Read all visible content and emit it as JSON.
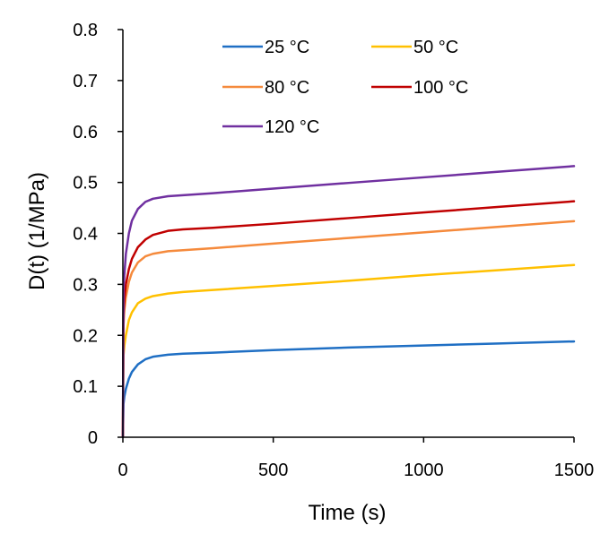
{
  "chart_data": {
    "type": "line",
    "title": "",
    "xlabel": "Time (s)",
    "ylabel": "D(t) (1/MPa)",
    "xlim": [
      0,
      1500
    ],
    "ylim": [
      0,
      0.8
    ],
    "xticks": [
      0,
      500,
      1000,
      1500
    ],
    "xtick_labels": [
      "0",
      "500",
      "1000",
      "1500"
    ],
    "yticks": [
      0,
      0.1,
      0.2,
      0.3,
      0.4,
      0.5,
      0.6,
      0.7,
      0.8
    ],
    "ytick_labels": [
      "0",
      "0.1",
      "0.2",
      "0.3",
      "0.4",
      "0.5",
      "0.6",
      "0.7",
      "0.8"
    ],
    "grid": false,
    "legend_position": "top",
    "series": [
      {
        "name": "25 °C",
        "color": "#1f6fc4",
        "x": [
          0,
          2,
          5,
          10,
          20,
          30,
          50,
          75,
          100,
          150,
          200,
          300,
          500,
          750,
          1000,
          1250,
          1500
        ],
        "y": [
          0,
          0.065,
          0.08,
          0.095,
          0.115,
          0.128,
          0.143,
          0.153,
          0.158,
          0.162,
          0.164,
          0.166,
          0.171,
          0.176,
          0.18,
          0.184,
          0.188
        ]
      },
      {
        "name": "50 °C",
        "color": "#ffc000",
        "x": [
          0,
          2,
          5,
          10,
          20,
          30,
          50,
          75,
          100,
          150,
          200,
          300,
          500,
          750,
          1000,
          1250,
          1500
        ],
        "y": [
          0,
          0.16,
          0.18,
          0.2,
          0.23,
          0.245,
          0.263,
          0.272,
          0.277,
          0.282,
          0.285,
          0.289,
          0.297,
          0.307,
          0.318,
          0.328,
          0.338
        ]
      },
      {
        "name": "80 °C",
        "color": "#f58a3c",
        "x": [
          0,
          2,
          5,
          10,
          20,
          30,
          50,
          75,
          100,
          150,
          200,
          300,
          500,
          750,
          1000,
          1250,
          1500
        ],
        "y": [
          0,
          0.22,
          0.25,
          0.275,
          0.305,
          0.323,
          0.343,
          0.355,
          0.36,
          0.365,
          0.367,
          0.371,
          0.38,
          0.391,
          0.402,
          0.413,
          0.424
        ]
      },
      {
        "name": "100 °C",
        "color": "#c00000",
        "x": [
          0,
          2,
          5,
          10,
          20,
          30,
          50,
          75,
          100,
          150,
          200,
          300,
          500,
          750,
          1000,
          1250,
          1500
        ],
        "y": [
          0,
          0.24,
          0.27,
          0.3,
          0.33,
          0.35,
          0.373,
          0.388,
          0.397,
          0.405,
          0.408,
          0.411,
          0.419,
          0.43,
          0.441,
          0.452,
          0.463
        ]
      },
      {
        "name": "120 °C",
        "color": "#7030a0",
        "x": [
          0,
          2,
          5,
          10,
          20,
          30,
          50,
          75,
          100,
          150,
          200,
          300,
          500,
          750,
          1000,
          1250,
          1500
        ],
        "y": [
          0,
          0.29,
          0.32,
          0.36,
          0.4,
          0.425,
          0.448,
          0.462,
          0.468,
          0.473,
          0.475,
          0.479,
          0.488,
          0.499,
          0.51,
          0.521,
          0.532
        ]
      }
    ]
  }
}
